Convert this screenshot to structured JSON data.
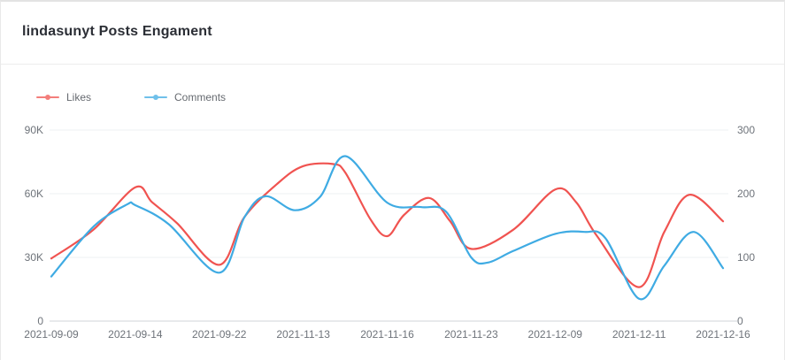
{
  "card": {
    "title": "lindasunyt Posts Engament"
  },
  "legend": {
    "items": [
      {
        "label": "Likes",
        "color": "#f05350"
      },
      {
        "label": "Comments",
        "color": "#3fabe3"
      }
    ]
  },
  "chart_data": {
    "type": "line",
    "title": "lindasunyt Posts Engament",
    "grid": true,
    "legend_position": "top-left",
    "smooth": true,
    "categories": [
      "2021-09-09",
      "2021-09-14",
      "2021-09-22",
      "2021-11-13",
      "2021-11-16",
      "2021-11-23",
      "2021-12-09",
      "2021-12-11",
      "2021-12-16"
    ],
    "left_axis": {
      "title": "Likes",
      "min": 0,
      "max": 90000,
      "tick_values": [
        0,
        30000,
        60000,
        90000
      ],
      "tick_labels": [
        "0",
        "30K",
        "60K",
        "90K"
      ]
    },
    "right_axis": {
      "title": "Comments",
      "min": 0,
      "max": 300,
      "tick_values": [
        0,
        100,
        200,
        300
      ],
      "tick_labels": [
        "0",
        "100",
        "200",
        "300"
      ]
    },
    "series": [
      {
        "name": "Likes",
        "axis": "left",
        "color": "#f05350",
        "points": [
          [
            0,
            29500
          ],
          [
            0.5,
            43000
          ],
          [
            1,
            63000
          ],
          [
            1.2,
            56000
          ],
          [
            1.5,
            46000
          ],
          [
            2,
            26500
          ],
          [
            2.3,
            49000
          ],
          [
            2.7,
            65000
          ],
          [
            3,
            73000
          ],
          [
            3.35,
            74000
          ],
          [
            3.5,
            70000
          ],
          [
            3.8,
            48000
          ],
          [
            4,
            40000
          ],
          [
            4.2,
            50000
          ],
          [
            4.5,
            58000
          ],
          [
            4.75,
            47000
          ],
          [
            5,
            34000
          ],
          [
            5.5,
            43000
          ],
          [
            6,
            62000
          ],
          [
            6.25,
            56000
          ],
          [
            6.5,
            40000
          ],
          [
            7,
            16000
          ],
          [
            7.3,
            42000
          ],
          [
            7.6,
            59500
          ],
          [
            8,
            47000
          ]
        ]
      },
      {
        "name": "Comments",
        "axis": "right",
        "color": "#3fabe3",
        "points": [
          [
            0,
            70
          ],
          [
            0.5,
            148
          ],
          [
            0.9,
            183
          ],
          [
            1,
            182
          ],
          [
            1.4,
            152
          ],
          [
            2,
            76
          ],
          [
            2.3,
            163
          ],
          [
            2.55,
            196
          ],
          [
            2.9,
            174
          ],
          [
            3.2,
            195
          ],
          [
            3.5,
            259
          ],
          [
            4,
            186
          ],
          [
            4.4,
            179
          ],
          [
            4.7,
            172
          ],
          [
            5,
            100
          ],
          [
            5.2,
            92
          ],
          [
            5.5,
            110
          ],
          [
            6,
            137
          ],
          [
            6.35,
            140
          ],
          [
            6.6,
            130
          ],
          [
            7,
            35
          ],
          [
            7.3,
            87
          ],
          [
            7.65,
            140
          ],
          [
            8,
            83
          ]
        ]
      }
    ]
  }
}
